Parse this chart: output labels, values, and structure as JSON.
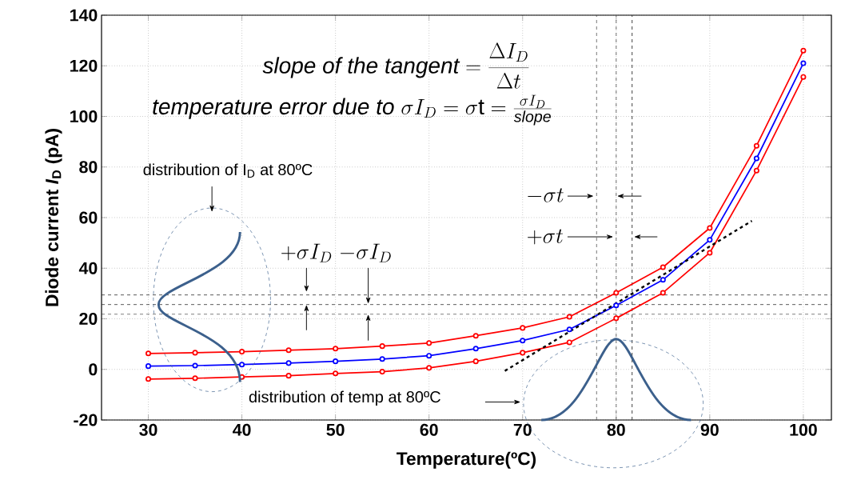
{
  "chart_data": {
    "type": "line",
    "xlabel": "Temperature(ºC)",
    "ylabel": "Diode current *I*$_{D}$ (pA)",
    "x": [
      30,
      35,
      40,
      45,
      50,
      55,
      60,
      65,
      70,
      75,
      80,
      85,
      90,
      95,
      100
    ],
    "series": [
      {
        "color": "#ff0000",
        "marker": "circle",
        "values": [
          6.3,
          6.6,
          7.0,
          7.6,
          8.2,
          9.2,
          10.4,
          13.3,
          16.4,
          20.8,
          30.3,
          40.4,
          55.9,
          88.4,
          126
        ]
      },
      {
        "color": "#0000ff",
        "marker": "circle",
        "values": [
          1.3,
          1.5,
          1.9,
          2.5,
          3.2,
          4.1,
          5.4,
          8.2,
          11.4,
          15.8,
          25.3,
          35.4,
          51.2,
          83.4,
          121
        ]
      },
      {
        "color": "#ff0000",
        "marker": "circle",
        "values": [
          -3.8,
          -3.5,
          -3.0,
          -2.5,
          -1.6,
          -0.9,
          0.6,
          3.2,
          6.6,
          10.7,
          20.2,
          30.3,
          46.1,
          78.6,
          115.6
        ]
      },
      {
        "type": "line",
        "color": "#000000",
        "marker": "none",
        "line_style": "dashed",
        "x": [
          68.1,
          94.5
        ],
        "values": [
          -0.6,
          58.7
        ]
      }
    ],
    "xlim": [
      25,
      103
    ],
    "ylim": [
      -20,
      140
    ],
    "xticks": [
      30,
      40,
      50,
      60,
      70,
      80,
      90,
      100
    ],
    "yticks": [
      -20,
      0,
      20,
      40,
      60,
      80,
      100,
      120,
      140
    ],
    "grid": true,
    "ref_lines": [
      {
        "axis": "y",
        "value": 29.4,
        "color": "#333333",
        "line_style": "dashed"
      },
      {
        "axis": "y",
        "value": 25.6,
        "color": "#333333",
        "line_style": "dashed"
      },
      {
        "axis": "y",
        "value": 21.8,
        "color": "#333333",
        "line_style": "dashed"
      },
      {
        "axis": "x",
        "value": 77.9,
        "color": "#333333",
        "line_style": "dashed"
      },
      {
        "axis": "x",
        "value": 80,
        "color": "#666666",
        "line_style": "dashed"
      },
      {
        "axis": "x",
        "value": 81.7,
        "color": "#333333",
        "line_style": "dashed"
      }
    ],
    "annotations": [
      "\\mathit{slope\\ of\\ the\\ tangent} = \\frac{\\Delta I_D}{\\Delta t}",
      "\\mathit{temperature\\ error\\ due\\ to\\ }\\sigma I_D = \\sigma\\mathrm{t} = \\frac{\\sigma I_D}{\\mathit{slope}}",
      "distribution of I$_{D}$ at 80ºC",
      "+\\sigma I_D",
      "-\\sigma I_D",
      "-\\sigma t",
      "+\\sigma t",
      "distribution of temp at 80ºC"
    ]
  }
}
